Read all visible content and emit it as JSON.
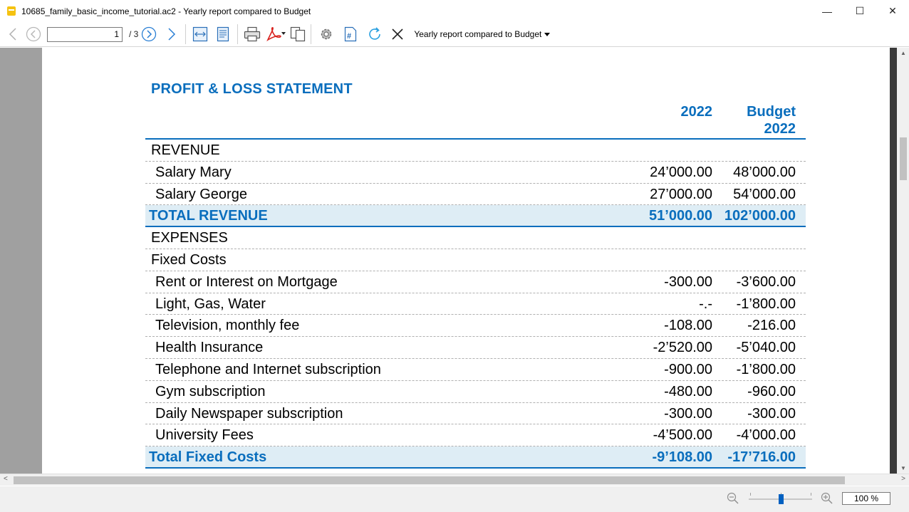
{
  "window": {
    "title": "10685_family_basic_income_tutorial.ac2 - Yearly report compared to Budget",
    "minimize_glyph": "—",
    "maximize_glyph": "☐",
    "close_glyph": "✕"
  },
  "toolbar": {
    "page_value": "1",
    "page_total": "/ 3",
    "report_name": "Yearly report compared to Budget"
  },
  "report": {
    "title": "PROFIT & LOSS STATEMENT",
    "col1_header": "2022",
    "col2_header_line1": "Budget",
    "col2_header_line2": "2022",
    "rows": [
      {
        "label": "REVENUE",
        "v1": "",
        "v2": "",
        "type": "group"
      },
      {
        "label": "Salary Mary",
        "v1": "24’000.00",
        "v2": "48’000.00",
        "type": "item"
      },
      {
        "label": "Salary George",
        "v1": "27’000.00",
        "v2": "54’000.00",
        "type": "item"
      },
      {
        "label": "TOTAL REVENUE",
        "v1": "51’000.00",
        "v2": "102’000.00",
        "type": "total"
      },
      {
        "label": "EXPENSES",
        "v1": "",
        "v2": "",
        "type": "group"
      },
      {
        "label": "Fixed Costs",
        "v1": "",
        "v2": "",
        "type": "group"
      },
      {
        "label": "Rent or Interest on Mortgage",
        "v1": "-300.00",
        "v2": "-3’600.00",
        "type": "item"
      },
      {
        "label": "Light, Gas, Water",
        "v1": "-.-",
        "v2": "-1’800.00",
        "type": "item"
      },
      {
        "label": "Television, monthly fee",
        "v1": "-108.00",
        "v2": "-216.00",
        "type": "item"
      },
      {
        "label": "Health Insurance",
        "v1": "-2’520.00",
        "v2": "-5’040.00",
        "type": "item"
      },
      {
        "label": "Telephone and Internet subscription",
        "v1": "-900.00",
        "v2": "-1’800.00",
        "type": "item"
      },
      {
        "label": "Gym subscription",
        "v1": "-480.00",
        "v2": "-960.00",
        "type": "item"
      },
      {
        "label": "Daily Newspaper subscription",
        "v1": "-300.00",
        "v2": "-300.00",
        "type": "item"
      },
      {
        "label": "University Fees",
        "v1": "-4’500.00",
        "v2": "-4’000.00",
        "type": "item"
      },
      {
        "label": "Total Fixed Costs",
        "v1": "-9’108.00",
        "v2": "-17’716.00",
        "type": "total"
      }
    ]
  },
  "statusbar": {
    "zoom": "100 %",
    "zoom_level_percent": 100
  },
  "icons": [
    "back-icon",
    "first-page-icon",
    "next-page-icon",
    "forward-icon",
    "fit-width-icon",
    "fit-page-icon",
    "print-icon",
    "pdf-icon",
    "copy-icon",
    "settings-icon",
    "hash-icon",
    "refresh-icon",
    "close-icon",
    "zoom-out-icon",
    "zoom-in-icon"
  ],
  "colors": {
    "accent": "#0a6ebd",
    "total_row_bg": "#deedf5"
  }
}
